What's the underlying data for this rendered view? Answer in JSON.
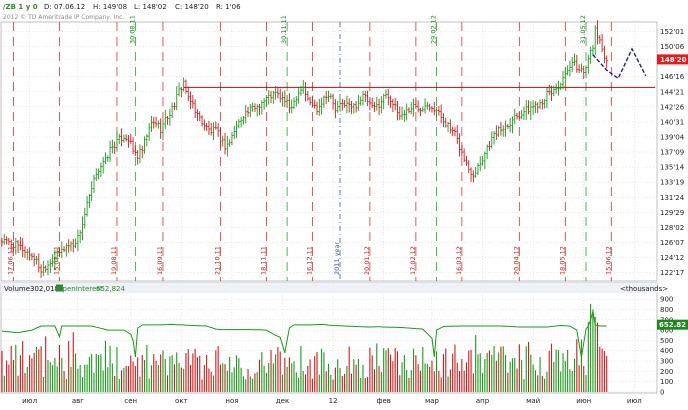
{
  "header": {
    "symbol": "/ZB 1 y 0",
    "date": "D: 07.06.12",
    "high": "H: 149'08",
    "low": "L: 148'02",
    "close": "C: 148'20",
    "range": "R: 1'06",
    "copyright": "2012 © TD Ameritrade IP Company, Inc."
  },
  "price_panel": {
    "y_ticks": [
      "152'01",
      "150'06",
      "148'20",
      "146'16",
      "144'21",
      "142'26",
      "140'31",
      "139'04",
      "137'09",
      "135'14",
      "133'19",
      "131'24",
      "129'29",
      "128'02",
      "126'07",
      "124'12",
      "122'17"
    ],
    "y_tick_values": [
      152.03125,
      150.1875,
      148.625,
      146.5,
      144.65625,
      142.8125,
      140.96875,
      139.125,
      137.28125,
      135.4375,
      133.59375,
      131.75,
      129.90625,
      128.0625,
      126.21875,
      124.375,
      122.53125
    ],
    "current_price": "148'20",
    "current_price_color": "#e8191b",
    "support_level": 145.2,
    "red_marker_lines": [
      {
        "label": "17.06.11",
        "x": 6
      },
      {
        "label": "15.07.11",
        "x": 26
      },
      {
        "label": "19.08.11",
        "x": 51
      },
      {
        "label": "16.09.11",
        "x": 71
      },
      {
        "label": "21.10.11",
        "x": 96
      },
      {
        "label": "18.11.11",
        "x": 116
      },
      {
        "label": "16.12.11",
        "x": 136
      },
      {
        "label": "20.01.12",
        "x": 161
      },
      {
        "label": "17.02.12",
        "x": 181
      },
      {
        "label": "16.03.12",
        "x": 201
      },
      {
        "label": "20.04.12",
        "x": 226
      },
      {
        "label": "18.05.12",
        "x": 246
      },
      {
        "label": "15.06.12",
        "x": 266
      }
    ],
    "green_marker_lines": [
      {
        "label": "30.08.11",
        "x": 59
      },
      {
        "label": "30.11.11",
        "x": 125
      },
      {
        "label": "29.02.12",
        "x": 190
      },
      {
        "label": "31.05.12",
        "x": 255
      }
    ],
    "year_divider": {
      "label": "2011 year",
      "x": 148
    },
    "forecast_line": [
      [
        258,
        149.2
      ],
      [
        264,
        147.3
      ],
      [
        269,
        146.3
      ],
      [
        275,
        149.9
      ],
      [
        281,
        146.6
      ]
    ]
  },
  "volume_panel": {
    "title": "Volume",
    "volume_value": "302,018",
    "oi_label": "OpenInterest",
    "oi_value": "652,824",
    "units": "<thousands>",
    "y_ticks": [
      "900",
      "800",
      "700",
      "600",
      "500",
      "400",
      "300",
      "200",
      "100",
      "0"
    ],
    "y_tick_values": [
      900,
      800,
      700,
      600,
      500,
      400,
      300,
      200,
      100,
      0
    ],
    "oi_current": "652.82"
  },
  "x_axis": {
    "labels": [
      {
        "text": "июл",
        "x": 13
      },
      {
        "text": "авг",
        "x": 34
      },
      {
        "text": "сен",
        "x": 57
      },
      {
        "text": "окт",
        "x": 79
      },
      {
        "text": "ноя",
        "x": 101
      },
      {
        "text": "дек",
        "x": 123
      },
      {
        "text": "12",
        "x": 145
      },
      {
        "text": "фев",
        "x": 167
      },
      {
        "text": "мар",
        "x": 188
      },
      {
        "text": "апр",
        "x": 210
      },
      {
        "text": "май",
        "x": 232
      },
      {
        "text": "июн",
        "x": 254
      },
      {
        "text": "июл",
        "x": 276
      }
    ]
  },
  "colors": {
    "up": "#1a9a1a",
    "down": "#d11a1a",
    "oi_line": "#1a9a1a",
    "support": "#b01010",
    "forecast": "#1a237e",
    "year_line": "#3355cc",
    "grid": "#c8c8c8",
    "axis_text": "#222222"
  },
  "chart_data": {
    "type": "bar",
    "title": "/ZB 1 y 0",
    "x_range": [
      1,
      285
    ],
    "price_ylim": [
      121.5,
      153.2
    ],
    "price_keyframes": [
      [
        1,
        126.4
      ],
      [
        5,
        126.1
      ],
      [
        9,
        125.6
      ],
      [
        12,
        125.0
      ],
      [
        15,
        124.4
      ],
      [
        18,
        122.8
      ],
      [
        21,
        123.6
      ],
      [
        24,
        124.4
      ],
      [
        27,
        125.2
      ],
      [
        29,
        125.8
      ],
      [
        32,
        126.0
      ],
      [
        34,
        126.8
      ],
      [
        36,
        128.5
      ],
      [
        38,
        130.8
      ],
      [
        40,
        132.6
      ],
      [
        42,
        134.8
      ],
      [
        44,
        135.6
      ],
      [
        46,
        136.2
      ],
      [
        48,
        137.6
      ],
      [
        50,
        138.2
      ],
      [
        52,
        138.8
      ],
      [
        54,
        139.2
      ],
      [
        56,
        138.9
      ],
      [
        58,
        137.4
      ],
      [
        60,
        136.8
      ],
      [
        62,
        137.5
      ],
      [
        64,
        139.3
      ],
      [
        66,
        140.7
      ],
      [
        68,
        140.9
      ],
      [
        70,
        140.1
      ],
      [
        72,
        141.2
      ],
      [
        74,
        142.0
      ],
      [
        76,
        143.2
      ],
      [
        78,
        144.7
      ],
      [
        80,
        145.9
      ],
      [
        82,
        143.6
      ],
      [
        84,
        143.2
      ],
      [
        86,
        141.8
      ],
      [
        88,
        141.0
      ],
      [
        90,
        140.2
      ],
      [
        92,
        139.8
      ],
      [
        94,
        139.9
      ],
      [
        96,
        139.0
      ],
      [
        98,
        138.0
      ],
      [
        100,
        138.5
      ],
      [
        102,
        139.9
      ],
      [
        104,
        140.9
      ],
      [
        106,
        141.9
      ],
      [
        108,
        142.2
      ],
      [
        110,
        142.6
      ],
      [
        112,
        142.9
      ],
      [
        114,
        143.4
      ],
      [
        116,
        143.8
      ],
      [
        118,
        144.2
      ],
      [
        120,
        144.4
      ],
      [
        122,
        144.0
      ],
      [
        124,
        143.6
      ],
      [
        126,
        142.7
      ],
      [
        128,
        143.5
      ],
      [
        130,
        144.7
      ],
      [
        132,
        145.3
      ],
      [
        134,
        143.6
      ],
      [
        136,
        143.1
      ],
      [
        138,
        142.6
      ],
      [
        140,
        143.5
      ],
      [
        142,
        144.4
      ],
      [
        144,
        143.9
      ],
      [
        146,
        142.4
      ],
      [
        148,
        142.9
      ],
      [
        150,
        143.3
      ],
      [
        152,
        142.9
      ],
      [
        154,
        142.8
      ],
      [
        156,
        143.4
      ],
      [
        158,
        144.1
      ],
      [
        160,
        143.5
      ],
      [
        162,
        142.6
      ],
      [
        164,
        142.9
      ],
      [
        166,
        143.5
      ],
      [
        168,
        144.5
      ],
      [
        170,
        143.8
      ],
      [
        172,
        142.6
      ],
      [
        174,
        141.7
      ],
      [
        176,
        142.1
      ],
      [
        178,
        142.5
      ],
      [
        180,
        142.9
      ],
      [
        182,
        142.6
      ],
      [
        184,
        142.9
      ],
      [
        186,
        143.3
      ],
      [
        188,
        142.9
      ],
      [
        190,
        142.3
      ],
      [
        192,
        141.6
      ],
      [
        194,
        140.9
      ],
      [
        196,
        140.0
      ],
      [
        198,
        139.4
      ],
      [
        200,
        137.9
      ],
      [
        202,
        136.4
      ],
      [
        204,
        135.2
      ],
      [
        206,
        134.6
      ],
      [
        208,
        135.6
      ],
      [
        210,
        136.5
      ],
      [
        212,
        137.9
      ],
      [
        214,
        138.9
      ],
      [
        216,
        139.7
      ],
      [
        218,
        140.1
      ],
      [
        220,
        140.5
      ],
      [
        222,
        141.0
      ],
      [
        224,
        141.7
      ],
      [
        226,
        141.9
      ],
      [
        228,
        142.3
      ],
      [
        230,
        142.5
      ],
      [
        232,
        142.9
      ],
      [
        234,
        143.2
      ],
      [
        236,
        143.6
      ],
      [
        238,
        144.3
      ],
      [
        240,
        144.6
      ],
      [
        242,
        145.1
      ],
      [
        244,
        145.6
      ],
      [
        246,
        146.5
      ],
      [
        248,
        147.6
      ],
      [
        250,
        148.1
      ],
      [
        252,
        147.3
      ],
      [
        254,
        147.2
      ],
      [
        256,
        148.9
      ],
      [
        258,
        149.8
      ],
      [
        259,
        152.5
      ],
      [
        261,
        150.6
      ],
      [
        263,
        149.2
      ],
      [
        264,
        148.6
      ]
    ],
    "volume_ylim": [
      0,
      950
    ],
    "oi_keyframes": [
      [
        1,
        590
      ],
      [
        8,
        575
      ],
      [
        14,
        600
      ],
      [
        18,
        640
      ],
      [
        24,
        640
      ],
      [
        26,
        535
      ],
      [
        27,
        640
      ],
      [
        32,
        640
      ],
      [
        40,
        640
      ],
      [
        47,
        600
      ],
      [
        54,
        600
      ],
      [
        57,
        560
      ],
      [
        58,
        500
      ],
      [
        59,
        340
      ],
      [
        60,
        620
      ],
      [
        62,
        650
      ],
      [
        70,
        650
      ],
      [
        74,
        655
      ],
      [
        80,
        650
      ],
      [
        86,
        642
      ],
      [
        90,
        640
      ],
      [
        94,
        610
      ],
      [
        96,
        605
      ],
      [
        104,
        605
      ],
      [
        110,
        605
      ],
      [
        116,
        600
      ],
      [
        120,
        550
      ],
      [
        122,
        530
      ],
      [
        124,
        380
      ],
      [
        126,
        620
      ],
      [
        128,
        650
      ],
      [
        135,
        650
      ],
      [
        140,
        655
      ],
      [
        145,
        645
      ],
      [
        150,
        640
      ],
      [
        155,
        635
      ],
      [
        160,
        630
      ],
      [
        165,
        632
      ],
      [
        170,
        628
      ],
      [
        175,
        625
      ],
      [
        184,
        610
      ],
      [
        188,
        520
      ],
      [
        189,
        340
      ],
      [
        190,
        600
      ],
      [
        193,
        635
      ],
      [
        200,
        640
      ],
      [
        210,
        640
      ],
      [
        218,
        640
      ],
      [
        222,
        636
      ],
      [
        226,
        630
      ],
      [
        232,
        630
      ],
      [
        238,
        630
      ],
      [
        244,
        645
      ],
      [
        248,
        640
      ],
      [
        251,
        600
      ],
      [
        253,
        335
      ],
      [
        255,
        610
      ],
      [
        256,
        640
      ],
      [
        257,
        700
      ],
      [
        258,
        780
      ],
      [
        259,
        650
      ],
      [
        261,
        640
      ],
      [
        264,
        640
      ]
    ]
  }
}
